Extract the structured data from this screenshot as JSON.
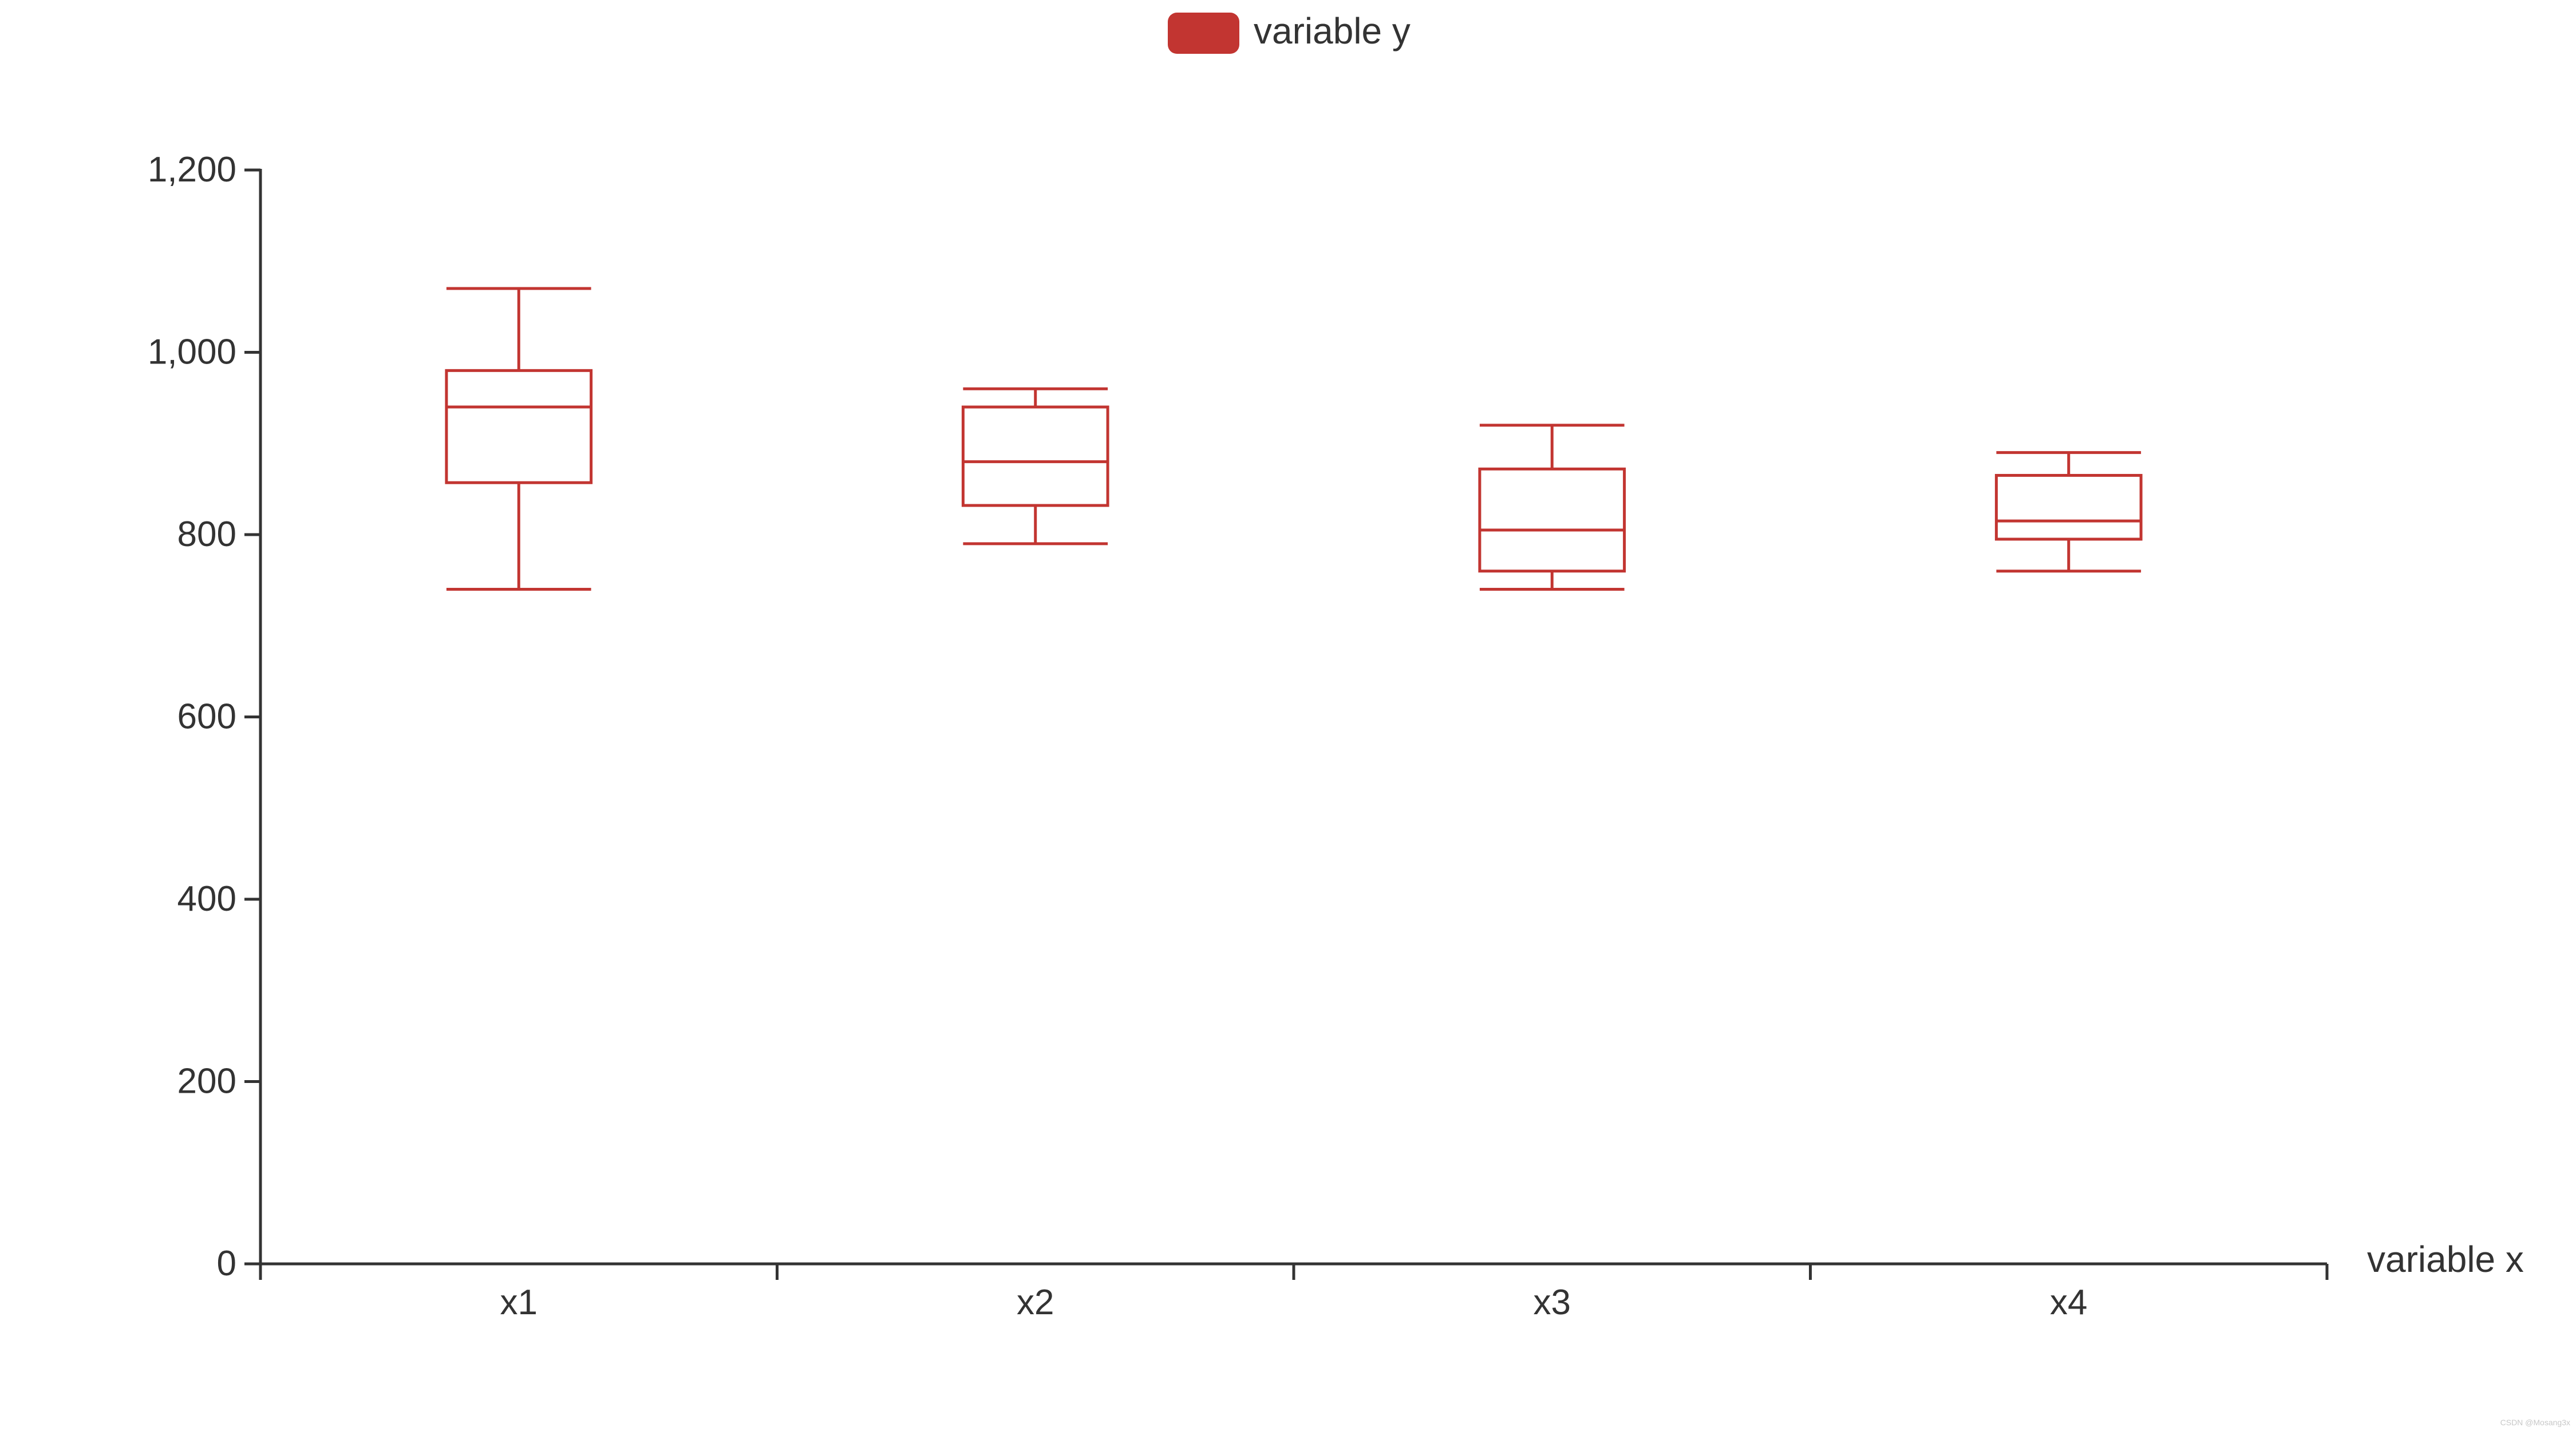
{
  "chart_data": {
    "type": "boxplot",
    "legend": {
      "label": "variable y",
      "placement": "top-center"
    },
    "xlabel": "variable x",
    "ylabel": "",
    "categories": [
      "x1",
      "x2",
      "x3",
      "x4"
    ],
    "ylim": [
      0,
      1200
    ],
    "yticks": [
      0,
      200,
      400,
      600,
      800,
      1000,
      1200
    ],
    "ytick_labels": [
      "0",
      "200",
      "400",
      "600",
      "800",
      "1,000",
      "1,200"
    ],
    "series": [
      {
        "name": "variable y",
        "color": "#c23531",
        "boxes": [
          {
            "min": 740,
            "q1": 857,
            "median": 940,
            "q3": 980,
            "max": 1070
          },
          {
            "min": 790,
            "q1": 832,
            "median": 880,
            "q3": 940,
            "max": 960
          },
          {
            "min": 740,
            "q1": 760,
            "median": 805,
            "q3": 872,
            "max": 920
          },
          {
            "min": 760,
            "q1": 795,
            "median": 815,
            "q3": 865,
            "max": 890
          }
        ]
      }
    ],
    "grid": false
  },
  "watermark": "CSDN @Mosang3x"
}
